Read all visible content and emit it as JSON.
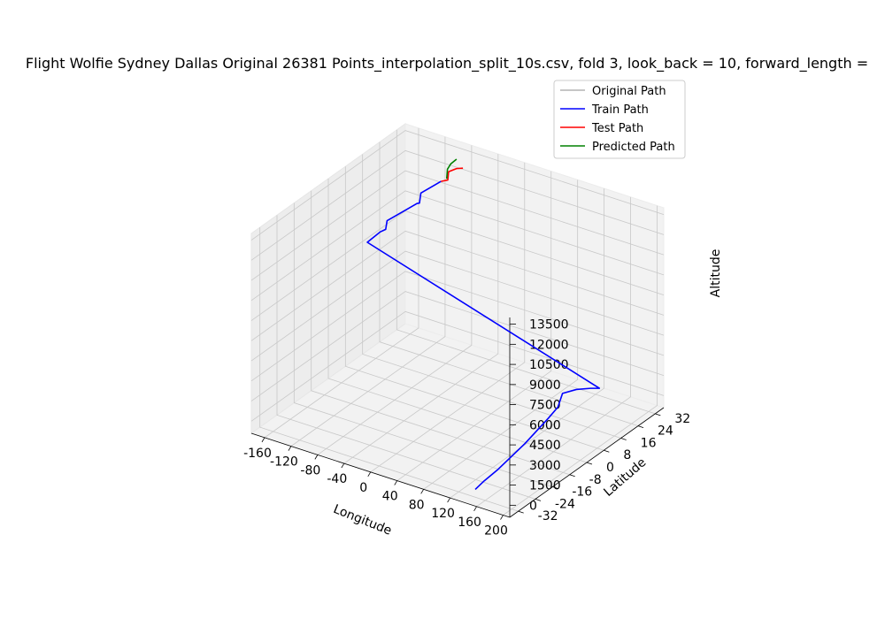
{
  "chart_data": {
    "type": "line3d",
    "title": "Flight Wolfie Sydney Dallas Original 26381 Points_interpolation_split_10s.csv, fold 3, look_back = 10, forward_length =",
    "xlabel": "Longitude",
    "ylabel": "Latitude",
    "zlabel": "Altitude",
    "xlim": [
      -180,
      210
    ],
    "ylim": [
      -36,
      36
    ],
    "zlim": [
      -900,
      14000
    ],
    "x_ticks": [
      -160,
      -120,
      -80,
      -40,
      0,
      40,
      80,
      120,
      160,
      200
    ],
    "y_ticks": [
      -32,
      -24,
      -16,
      -8,
      0,
      8,
      16,
      24,
      32
    ],
    "z_ticks": [
      0,
      1500,
      3000,
      4500,
      6000,
      7500,
      9000,
      10500,
      12000,
      13500
    ],
    "grid": true,
    "legend_position": "upper right",
    "series": [
      {
        "name": "Original Path",
        "color": "#b3b3b3",
        "points": [
          [
            150.9,
            -33.9,
            0
          ],
          [
            151.0,
            -33.8,
            0
          ]
        ]
      },
      {
        "name": "Train Path",
        "color": "#0000ff",
        "points": [
          [
            151.2,
            -33.9,
            0
          ],
          [
            152.0,
            -30.0,
            200
          ],
          [
            153.5,
            -24.0,
            400
          ],
          [
            155.5,
            -12.0,
            1000
          ],
          [
            158.5,
            -2.0,
            1800
          ],
          [
            160.0,
            2.0,
            2200
          ],
          [
            160.5,
            4.0,
            3000
          ],
          [
            175.0,
            6.0,
            3300
          ],
          [
            190.0,
            8.0,
            3400
          ],
          [
            200.0,
            9.0,
            3450
          ],
          [
            -168.0,
            14.5,
            7800
          ],
          [
            -160.0,
            18.0,
            8300
          ],
          [
            -158.0,
            20.0,
            8300
          ],
          [
            -157.5,
            20.5,
            8900
          ],
          [
            -140.0,
            24.0,
            9600
          ],
          [
            -130.0,
            26.0,
            10000
          ],
          [
            -128.0,
            26.5,
            10000
          ],
          [
            -127.5,
            27.0,
            10700
          ],
          [
            -115.0,
            30.0,
            11200
          ],
          [
            -110.0,
            31.0,
            11400
          ]
        ]
      },
      {
        "name": "Test Path",
        "color": "#ff0000",
        "points": [
          [
            -110.0,
            31.0,
            11400
          ],
          [
            -103.0,
            32.0,
            11500
          ],
          [
            -102.5,
            32.2,
            12100
          ],
          [
            -93.0,
            33.0,
            12400
          ],
          [
            -85.0,
            33.5,
            12500
          ]
        ]
      },
      {
        "name": "Predicted Path",
        "color": "#008000",
        "points": [
          [
            -104.0,
            31.8,
            11600
          ],
          [
            -103.5,
            32.0,
            12300
          ],
          [
            -100.0,
            32.5,
            12700
          ],
          [
            -93.0,
            33.0,
            13100
          ]
        ]
      }
    ]
  }
}
